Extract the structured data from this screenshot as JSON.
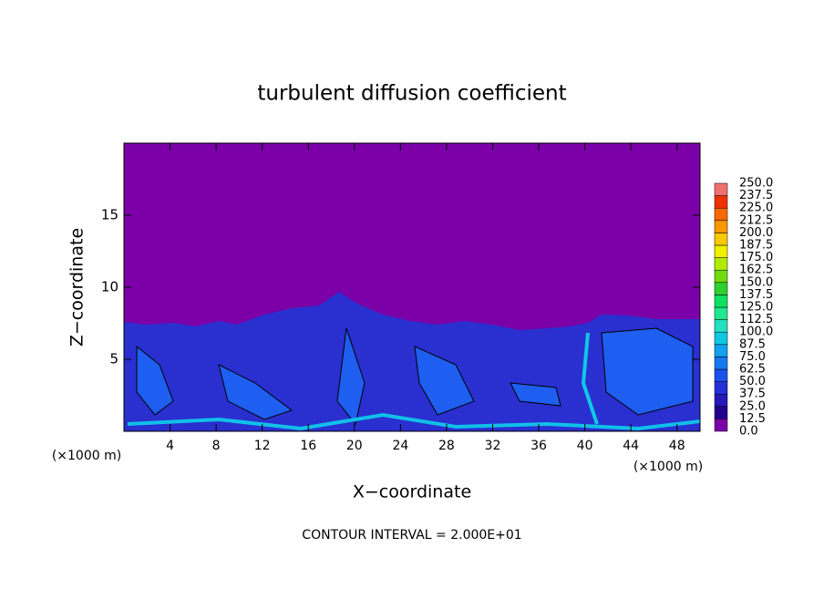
{
  "chart_data": {
    "type": "contour",
    "title": "turbulent diffusion coefficient",
    "xlabel": "X−coordinate",
    "ylabel": "Z−coordinate",
    "x_unit_left": "(×1000 m)",
    "x_unit_right": "(×1000 m)",
    "footer": "CONTOUR INTERVAL = 2.000E+01",
    "background_color": "#7b00a8",
    "xlim": [
      0,
      50
    ],
    "ylim": [
      0,
      20
    ],
    "xticks": [
      4,
      8,
      12,
      16,
      20,
      24,
      28,
      32,
      36,
      40,
      44,
      48
    ],
    "yticks": [
      5,
      10,
      15
    ],
    "colorbar": {
      "levels": [
        {
          "value": 0,
          "label": "0.0"
        },
        {
          "value": 12.5,
          "label": "12.5"
        },
        {
          "value": 25,
          "label": "25.0"
        },
        {
          "value": 37.5,
          "label": "37.5"
        },
        {
          "value": 50,
          "label": "50.0"
        },
        {
          "value": 62.5,
          "label": "62.5"
        },
        {
          "value": 75,
          "label": "75.0"
        },
        {
          "value": 87.5,
          "label": "87.5"
        },
        {
          "value": 100,
          "label": "100.0"
        },
        {
          "value": 112.5,
          "label": "112.5"
        },
        {
          "value": 125,
          "label": "125.0"
        },
        {
          "value": 137.5,
          "label": "137.5"
        },
        {
          "value": 150,
          "label": "150.0"
        },
        {
          "value": 162.5,
          "label": "162.5"
        },
        {
          "value": 175,
          "label": "175.0"
        },
        {
          "value": 187.5,
          "label": "187.5"
        },
        {
          "value": 200,
          "label": "200.0"
        },
        {
          "value": 212.5,
          "label": "212.5"
        },
        {
          "value": 225,
          "label": "225.0"
        },
        {
          "value": 237.5,
          "label": "237.5"
        },
        {
          "value": 250,
          "label": "250.0"
        }
      ],
      "colors": [
        "#7b00a8",
        "#22008f",
        "#2418b8",
        "#2430d8",
        "#1e50ee",
        "#1478f0",
        "#10a0ee",
        "#10c8e4",
        "#20e0c0",
        "#20e890",
        "#10e060",
        "#30d030",
        "#70dc10",
        "#b0ec00",
        "#f0f000",
        "#f8c800",
        "#f89800",
        "#f86800",
        "#f03000",
        "#f07070"
      ]
    }
  }
}
